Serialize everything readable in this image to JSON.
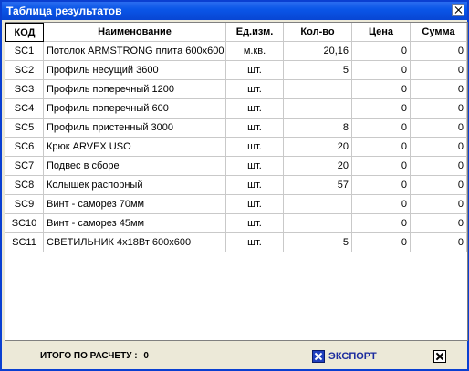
{
  "window": {
    "title": "Таблица результатов"
  },
  "table": {
    "headers": {
      "code": "КОД",
      "name": "Наименование",
      "unit": "Ед.изм.",
      "qty": "Кол-во",
      "price": "Цена",
      "sum": "Сумма"
    },
    "rows": [
      {
        "code": "SC1",
        "name": "Потолок ARMSTRONG плита 600x600",
        "unit": "м.кв.",
        "qty": "20,16",
        "price": "0",
        "sum": "0"
      },
      {
        "code": "SC2",
        "name": "Профиль несущий 3600",
        "unit": "шт.",
        "qty": "5",
        "price": "0",
        "sum": "0"
      },
      {
        "code": "SC3",
        "name": "Профиль поперечный 1200",
        "unit": "шт.",
        "qty": "",
        "price": "0",
        "sum": "0"
      },
      {
        "code": "SC4",
        "name": "Профиль поперечный 600",
        "unit": "шт.",
        "qty": "",
        "price": "0",
        "sum": "0"
      },
      {
        "code": "SC5",
        "name": "Профиль пристенный 3000",
        "unit": "шт.",
        "qty": "8",
        "price": "0",
        "sum": "0"
      },
      {
        "code": "SC6",
        "name": "Крюк ARVEX USO",
        "unit": "шт.",
        "qty": "20",
        "price": "0",
        "sum": "0"
      },
      {
        "code": "SC7",
        "name": "Подвес в сборе",
        "unit": "шт.",
        "qty": "20",
        "price": "0",
        "sum": "0"
      },
      {
        "code": "SC8",
        "name": "Колышек распорный",
        "unit": "шт.",
        "qty": "57",
        "price": "0",
        "sum": "0"
      },
      {
        "code": "SC9",
        "name": "Винт - саморез 70мм",
        "unit": "шт.",
        "qty": "",
        "price": "0",
        "sum": "0"
      },
      {
        "code": "SC10",
        "name": "Винт - саморез 45мм",
        "unit": "шт.",
        "qty": "",
        "price": "0",
        "sum": "0"
      },
      {
        "code": "SC11",
        "name": "СВЕТИЛЬНИК 4x18Вт 600x600",
        "unit": "шт.",
        "qty": "5",
        "price": "0",
        "sum": "0"
      }
    ]
  },
  "footer": {
    "total_label": "ИТОГО ПО РАСЧЕТУ :",
    "total_value": "0",
    "export_label": "ЭКСПОРТ",
    "export_icon": "excel-export-icon",
    "close_icon": "close-icon"
  }
}
